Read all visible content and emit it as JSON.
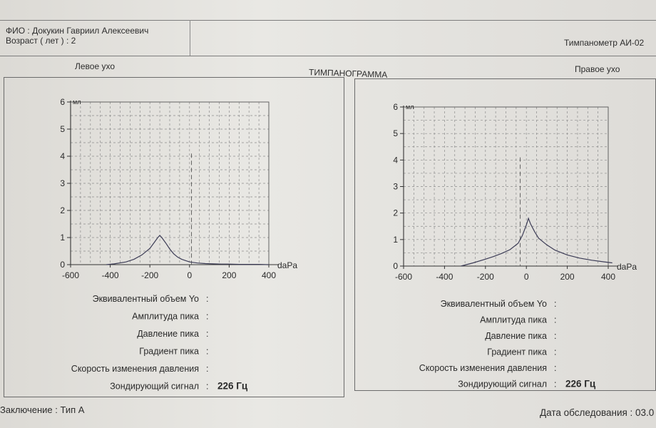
{
  "header": {
    "patient_name": "ФИО : Докукин Гавриил Алексеевич",
    "patient_age": "Возраст ( лет ) : 2",
    "device": "Тимпанометр АИ-02"
  },
  "title": "ТИМПАНОГРАММА",
  "left_ear": {
    "label": "Левое ухо",
    "params": [
      {
        "label": "Эквивалентный объем Yo",
        "value": ""
      },
      {
        "label": "Амплитуда пика",
        "value": ""
      },
      {
        "label": "Давление пика",
        "value": ""
      },
      {
        "label": "Градиент пика",
        "value": ""
      },
      {
        "label": "Скорость изменения давления",
        "value": ""
      },
      {
        "label": "Зондирующий сигнал",
        "value": "226 Гц"
      }
    ]
  },
  "right_ear": {
    "label": "Правое ухо",
    "params": [
      {
        "label": "Эквивалентный объем Yo",
        "value": ""
      },
      {
        "label": "Амплитуда пика",
        "value": ""
      },
      {
        "label": "Давление пика",
        "value": ""
      },
      {
        "label": "Градиент пика",
        "value": ""
      },
      {
        "label": "Скорость изменения давления",
        "value": ""
      },
      {
        "label": "Зондирующий сигнал",
        "value": "226 Гц"
      }
    ]
  },
  "footer": {
    "conclusion": "Заключение : Тип А",
    "exam_date": "Дата обследования : 03.0"
  },
  "chart_data": [
    {
      "type": "line",
      "title": "Левое ухо",
      "xlabel": "daPa",
      "ylabel": "мл",
      "xlim": [
        -600,
        400
      ],
      "ylim": [
        0,
        6
      ],
      "x_ticks": [
        "-600",
        "-400",
        "-200",
        "0",
        "200",
        "400"
      ],
      "y_ticks": [
        "0",
        "1",
        "2",
        "3",
        "4",
        "5",
        "6"
      ],
      "grid": true,
      "series": [
        {
          "name": "Левое ухо",
          "x": [
            -420,
            -380,
            -320,
            -280,
            -240,
            -200,
            -180,
            -160,
            -150,
            -140,
            -120,
            -100,
            -80,
            -60,
            -40,
            -20,
            0,
            40,
            80,
            120,
            160,
            200,
            250,
            300,
            350,
            400
          ],
          "y": [
            0,
            0.03,
            0.1,
            0.2,
            0.36,
            0.6,
            0.8,
            1.0,
            1.08,
            1.0,
            0.8,
            0.58,
            0.4,
            0.28,
            0.2,
            0.15,
            0.1,
            0.06,
            0.04,
            0.03,
            0.02,
            0.02,
            0.01,
            0.01,
            0.01,
            0.0
          ]
        }
      ],
      "peak_marker_x": 10
    },
    {
      "type": "line",
      "title": "Правое ухо",
      "xlabel": "daPa",
      "ylabel": "мл",
      "xlim": [
        -600,
        400
      ],
      "ylim": [
        0,
        6
      ],
      "x_ticks": [
        "-600",
        "-400",
        "-200",
        "0",
        "200",
        "400"
      ],
      "y_ticks": [
        "0",
        "1",
        "2",
        "3",
        "4",
        "5",
        "6"
      ],
      "grid": true,
      "series": [
        {
          "name": "Правое ухо",
          "x": [
            -320,
            -260,
            -200,
            -160,
            -120,
            -80,
            -40,
            -20,
            0,
            10,
            20,
            40,
            60,
            100,
            140,
            200,
            260,
            320,
            380,
            420
          ],
          "y": [
            0,
            0.12,
            0.26,
            0.36,
            0.48,
            0.62,
            0.86,
            1.15,
            1.55,
            1.8,
            1.6,
            1.3,
            1.05,
            0.8,
            0.6,
            0.42,
            0.3,
            0.22,
            0.16,
            0.12
          ]
        }
      ],
      "peak_marker_x": -30
    }
  ]
}
